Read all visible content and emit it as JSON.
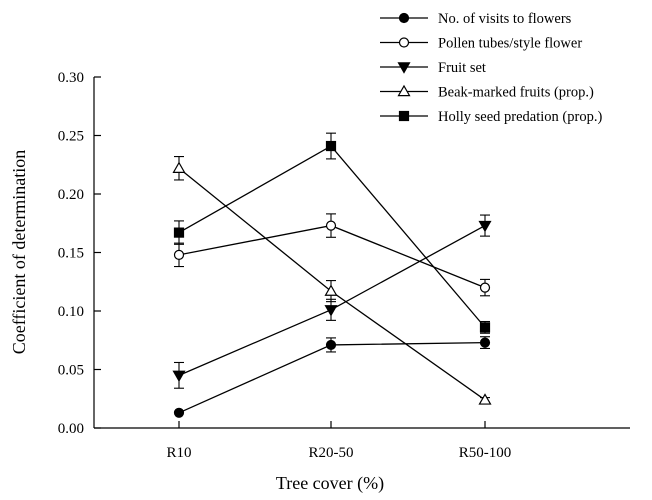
{
  "chart_data": {
    "type": "line",
    "xlabel": "Tree cover (%)",
    "ylabel": "Coefficient of determination",
    "categories": [
      "R10",
      "R20-50",
      "R50-100"
    ],
    "ylim": [
      0,
      0.3
    ],
    "yticks": [
      "0.00",
      "0.05",
      "0.10",
      "0.15",
      "0.20",
      "0.25",
      "0.30"
    ],
    "grid": false,
    "legend_position": "top-right",
    "series": [
      {
        "name": "No. of visits to flowers",
        "marker": "circle-filled",
        "values": [
          0.013,
          0.071,
          0.073
        ],
        "errors": [
          0.0,
          0.006,
          0.005
        ]
      },
      {
        "name": "Pollen tubes/style flower",
        "marker": "circle-open",
        "values": [
          0.148,
          0.173,
          0.12
        ],
        "errors": [
          0.01,
          0.01,
          0.007
        ]
      },
      {
        "name": "Fruit set",
        "marker": "triangle-down-filled",
        "values": [
          0.045,
          0.101,
          0.173
        ],
        "errors": [
          0.011,
          0.009,
          0.009
        ]
      },
      {
        "name": "Beak-marked fruits (prop.)",
        "marker": "triangle-up-open",
        "values": [
          0.222,
          0.117,
          0.024
        ],
        "errors": [
          0.01,
          0.009,
          0.002
        ]
      },
      {
        "name": "Holly seed predation (prop.)",
        "marker": "square-filled",
        "values": [
          0.167,
          0.241,
          0.086
        ],
        "errors": [
          0.01,
          0.011,
          0.005
        ]
      }
    ]
  }
}
